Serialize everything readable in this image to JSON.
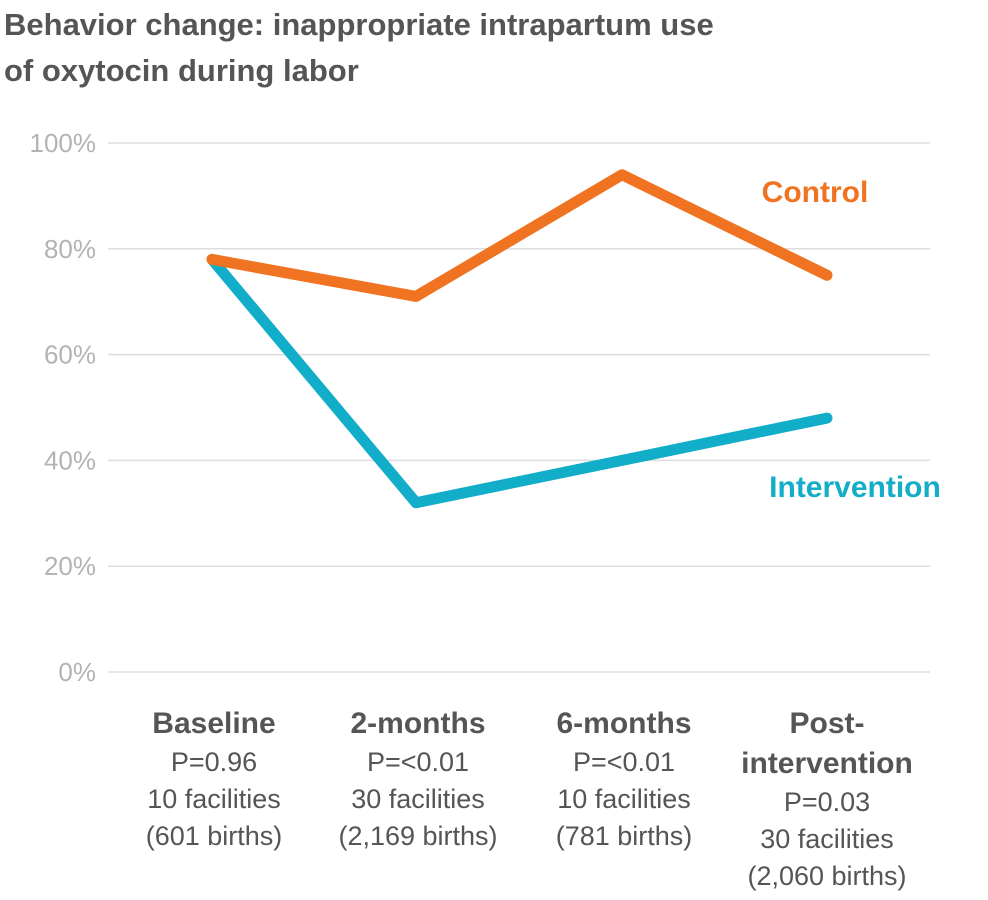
{
  "chart_data": {
    "type": "line",
    "title_line1": "Behavior change: inappropriate intrapartum use",
    "title_line2": "of oxytocin during labor",
    "ylim": [
      0,
      100
    ],
    "yticks": [
      "0%",
      "20%",
      "40%",
      "60%",
      "80%",
      "100%"
    ],
    "ytick_values": [
      0,
      20,
      40,
      60,
      80,
      100
    ],
    "grid": true,
    "categories": [
      {
        "label_lines": [
          "Baseline"
        ],
        "p": "P=0.96",
        "facilities": "10 facilities",
        "births": "(601 births)"
      },
      {
        "label_lines": [
          "2-months"
        ],
        "p": "P=<0.01",
        "facilities": "30 facilities",
        "births": "(2,169 births)"
      },
      {
        "label_lines": [
          "6-months"
        ],
        "p": "P=<0.01",
        "facilities": "10 facilities",
        "births": "(781 births)"
      },
      {
        "label_lines": [
          "Post-",
          "intervention"
        ],
        "p": "P=0.03",
        "facilities": "30 facilities",
        "births": "(2,060 births)"
      }
    ],
    "series": [
      {
        "name": "Control",
        "color": "#f07321",
        "values": [
          78,
          71,
          94,
          75
        ]
      },
      {
        "name": "Intervention",
        "color": "#12adc8",
        "values": [
          78,
          32,
          40,
          48
        ]
      }
    ]
  }
}
